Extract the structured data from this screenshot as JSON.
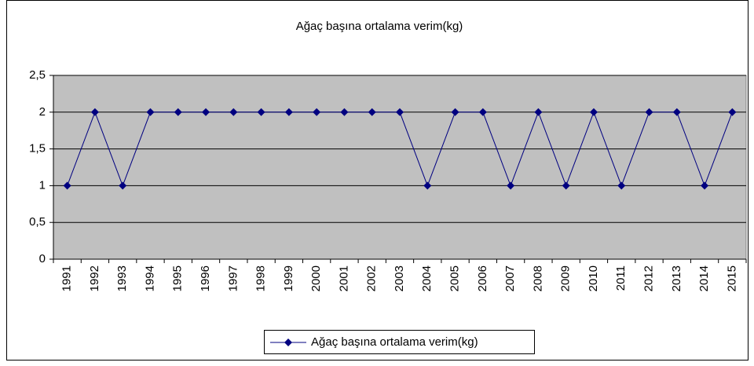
{
  "chart_data": {
    "type": "line",
    "title": "Ağaç başına ortalama verim(kg)",
    "categories": [
      "1991",
      "1992",
      "1993",
      "1994",
      "1995",
      "1996",
      "1997",
      "1998",
      "1999",
      "2000",
      "2001",
      "2002",
      "2003",
      "2004",
      "2005",
      "2006",
      "2007",
      "2008",
      "2009",
      "2010",
      "2011",
      "2012",
      "2013",
      "2014",
      "2015"
    ],
    "series": [
      {
        "name": "Ağaç başına ortalama verim(kg)",
        "color": "#000080",
        "values": [
          1,
          2,
          1,
          2,
          2,
          2,
          2,
          2,
          2,
          2,
          2,
          2,
          2,
          1,
          2,
          2,
          1,
          2,
          1,
          2,
          1,
          2,
          2,
          1,
          2
        ]
      }
    ],
    "ylim": [
      0,
      2.5
    ],
    "yticks": [
      0,
      {
        "value": 0.5,
        "label": "0,5"
      },
      1,
      {
        "value": 1.5,
        "label": "1,5"
      },
      2,
      {
        "value": 2.5,
        "label": "2,5"
      }
    ],
    "grid": true,
    "legend": "bottom",
    "plot_background": "#c0c0c0"
  }
}
